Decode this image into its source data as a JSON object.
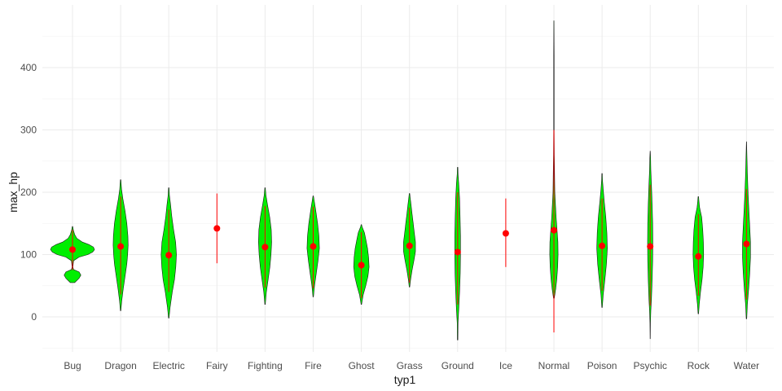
{
  "chart_data": {
    "type": "violin",
    "xlabel": "typ1",
    "ylabel": "max_hp",
    "ylim": [
      -52,
      478
    ],
    "yticks": [
      0,
      100,
      200,
      300,
      400
    ],
    "grid": true,
    "colors": {
      "violin_fill": "#00ee00",
      "violin_outline": "#1a1a1a",
      "summary": "#ff0000",
      "grid": "#ebebeb"
    },
    "categories": [
      "Bug",
      "Dragon",
      "Electric",
      "Fairy",
      "Fighting",
      "Fire",
      "Ghost",
      "Grass",
      "Ground",
      "Ice",
      "Normal",
      "Poison",
      "Psychic",
      "Rock",
      "Water"
    ],
    "mean": [
      108,
      113,
      99,
      142,
      112,
      113,
      83,
      114,
      104,
      134,
      139,
      114,
      113,
      97,
      117
    ],
    "range_low": [
      75,
      36,
      40,
      86,
      47,
      46,
      30,
      55,
      20,
      80,
      -25,
      42,
      18,
      34,
      28
    ],
    "range_high": [
      140,
      193,
      172,
      198,
      178,
      177,
      136,
      175,
      200,
      190,
      300,
      190,
      212,
      165,
      205
    ],
    "violins": [
      {
        "ymin": 55,
        "ymax": 145,
        "profile": [
          [
            55,
            0.1
          ],
          [
            62,
            0.3
          ],
          [
            67,
            0.38
          ],
          [
            72,
            0.3
          ],
          [
            76,
            0.05
          ],
          [
            80,
            0.02
          ],
          [
            90,
            0.05
          ],
          [
            96,
            0.3
          ],
          [
            100,
            0.7
          ],
          [
            104,
            0.92
          ],
          [
            108,
            1.0
          ],
          [
            112,
            0.95
          ],
          [
            116,
            0.75
          ],
          [
            120,
            0.45
          ],
          [
            126,
            0.2
          ],
          [
            132,
            0.1
          ],
          [
            139,
            0.04
          ],
          [
            145,
            0.01
          ]
        ]
      },
      {
        "ymin": 10,
        "ymax": 220,
        "profile": [
          [
            10,
            0.01
          ],
          [
            25,
            0.05
          ],
          [
            45,
            0.12
          ],
          [
            65,
            0.2
          ],
          [
            85,
            0.28
          ],
          [
            100,
            0.32
          ],
          [
            115,
            0.34
          ],
          [
            130,
            0.33
          ],
          [
            150,
            0.28
          ],
          [
            170,
            0.2
          ],
          [
            190,
            0.1
          ],
          [
            205,
            0.04
          ],
          [
            220,
            0.01
          ]
        ]
      },
      {
        "ymin": -2,
        "ymax": 207,
        "profile": [
          [
            -2,
            0.01
          ],
          [
            15,
            0.06
          ],
          [
            40,
            0.16
          ],
          [
            60,
            0.26
          ],
          [
            80,
            0.32
          ],
          [
            100,
            0.35
          ],
          [
            120,
            0.31
          ],
          [
            140,
            0.22
          ],
          [
            160,
            0.14
          ],
          [
            180,
            0.08
          ],
          [
            195,
            0.03
          ],
          [
            207,
            0.01
          ]
        ]
      },
      {
        "ymin": 142,
        "ymax": 142,
        "profile": []
      },
      {
        "ymin": 20,
        "ymax": 207,
        "profile": [
          [
            20,
            0.01
          ],
          [
            40,
            0.06
          ],
          [
            60,
            0.14
          ],
          [
            80,
            0.22
          ],
          [
            100,
            0.27
          ],
          [
            120,
            0.3
          ],
          [
            140,
            0.28
          ],
          [
            160,
            0.21
          ],
          [
            180,
            0.11
          ],
          [
            195,
            0.04
          ],
          [
            207,
            0.01
          ]
        ]
      },
      {
        "ymin": 32,
        "ymax": 194,
        "profile": [
          [
            32,
            0.01
          ],
          [
            50,
            0.06
          ],
          [
            70,
            0.14
          ],
          [
            90,
            0.22
          ],
          [
            110,
            0.28
          ],
          [
            130,
            0.26
          ],
          [
            150,
            0.2
          ],
          [
            170,
            0.12
          ],
          [
            185,
            0.05
          ],
          [
            194,
            0.01
          ]
        ]
      },
      {
        "ymin": 20,
        "ymax": 148,
        "profile": [
          [
            20,
            0.01
          ],
          [
            35,
            0.08
          ],
          [
            50,
            0.2
          ],
          [
            65,
            0.3
          ],
          [
            80,
            0.35
          ],
          [
            95,
            0.33
          ],
          [
            110,
            0.28
          ],
          [
            125,
            0.2
          ],
          [
            135,
            0.14
          ],
          [
            145,
            0.03
          ],
          [
            148,
            0.01
          ]
        ]
      },
      {
        "ymin": 48,
        "ymax": 198,
        "profile": [
          [
            48,
            0.01
          ],
          [
            60,
            0.05
          ],
          [
            75,
            0.12
          ],
          [
            90,
            0.2
          ],
          [
            105,
            0.27
          ],
          [
            120,
            0.27
          ],
          [
            135,
            0.22
          ],
          [
            150,
            0.17
          ],
          [
            165,
            0.12
          ],
          [
            180,
            0.07
          ],
          [
            192,
            0.03
          ],
          [
            198,
            0.01
          ]
        ]
      },
      {
        "ymin": -37,
        "ymax": 240,
        "profile": [
          [
            -37,
            0.01
          ],
          [
            -10,
            0.02
          ],
          [
            10,
            0.05
          ],
          [
            40,
            0.09
          ],
          [
            70,
            0.12
          ],
          [
            100,
            0.13
          ],
          [
            130,
            0.13
          ],
          [
            160,
            0.11
          ],
          [
            190,
            0.09
          ],
          [
            215,
            0.05
          ],
          [
            230,
            0.02
          ],
          [
            240,
            0.01
          ]
        ]
      },
      {
        "ymin": 134,
        "ymax": 134,
        "profile": []
      },
      {
        "ymin": 30,
        "ymax": 475,
        "profile": [
          [
            30,
            0.02
          ],
          [
            45,
            0.08
          ],
          [
            60,
            0.13
          ],
          [
            80,
            0.17
          ],
          [
            100,
            0.19
          ],
          [
            120,
            0.18
          ],
          [
            140,
            0.14
          ],
          [
            160,
            0.1
          ],
          [
            180,
            0.07
          ],
          [
            200,
            0.04
          ],
          [
            230,
            0.03
          ],
          [
            260,
            0.02
          ],
          [
            300,
            0.01
          ],
          [
            360,
            0.01
          ],
          [
            420,
            0.01
          ],
          [
            475,
            0.005
          ]
        ]
      },
      {
        "ymin": 15,
        "ymax": 230,
        "profile": [
          [
            15,
            0.01
          ],
          [
            35,
            0.05
          ],
          [
            60,
            0.13
          ],
          [
            85,
            0.2
          ],
          [
            110,
            0.24
          ],
          [
            135,
            0.22
          ],
          [
            160,
            0.17
          ],
          [
            185,
            0.1
          ],
          [
            205,
            0.05
          ],
          [
            220,
            0.02
          ],
          [
            230,
            0.01
          ]
        ]
      },
      {
        "ymin": -35,
        "ymax": 266,
        "profile": [
          [
            -35,
            0.005
          ],
          [
            -10,
            0.01
          ],
          [
            10,
            0.03
          ],
          [
            30,
            0.06
          ],
          [
            60,
            0.09
          ],
          [
            90,
            0.11
          ],
          [
            120,
            0.12
          ],
          [
            150,
            0.11
          ],
          [
            180,
            0.09
          ],
          [
            210,
            0.06
          ],
          [
            235,
            0.03
          ],
          [
            255,
            0.02
          ],
          [
            266,
            0.005
          ]
        ]
      },
      {
        "ymin": 5,
        "ymax": 193,
        "profile": [
          [
            5,
            0.01
          ],
          [
            20,
            0.04
          ],
          [
            40,
            0.1
          ],
          [
            60,
            0.17
          ],
          [
            80,
            0.22
          ],
          [
            100,
            0.24
          ],
          [
            120,
            0.23
          ],
          [
            140,
            0.2
          ],
          [
            160,
            0.15
          ],
          [
            175,
            0.06
          ],
          [
            185,
            0.03
          ],
          [
            193,
            0.01
          ]
        ]
      },
      {
        "ymin": -3,
        "ymax": 281,
        "profile": [
          [
            -3,
            0.01
          ],
          [
            20,
            0.04
          ],
          [
            45,
            0.1
          ],
          [
            70,
            0.15
          ],
          [
            95,
            0.18
          ],
          [
            120,
            0.18
          ],
          [
            145,
            0.15
          ],
          [
            170,
            0.11
          ],
          [
            200,
            0.07
          ],
          [
            230,
            0.04
          ],
          [
            260,
            0.02
          ],
          [
            281,
            0.005
          ]
        ]
      }
    ]
  }
}
